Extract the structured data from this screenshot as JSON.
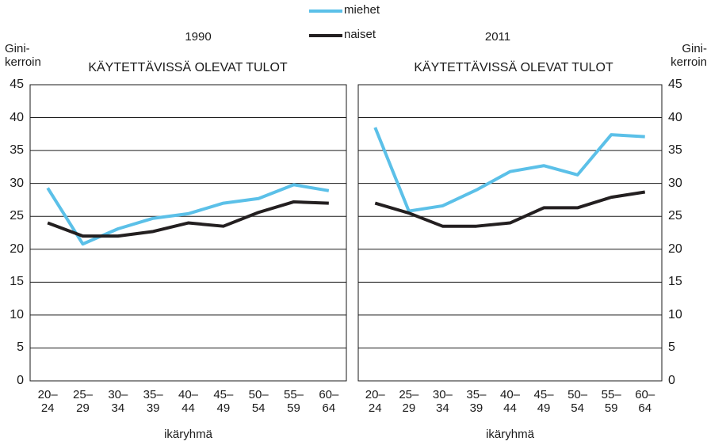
{
  "chart_data": [
    {
      "type": "line",
      "title": "1990",
      "subtitle": "KÄYTETTÄVISSÄ OLEVAT TULOT",
      "xlabel": "ikäryhmä",
      "ylabel": "Gini-kerroin",
      "categories": [
        "20–24",
        "25–29",
        "30–34",
        "35–39",
        "40–44",
        "45–49",
        "50–54",
        "55–59",
        "60–64"
      ],
      "series": [
        {
          "name": "miehet",
          "color": "#5bc0e8",
          "values": [
            29.3,
            20.8,
            23.1,
            24.7,
            25.4,
            27.0,
            27.7,
            29.8,
            28.9
          ]
        },
        {
          "name": "naiset",
          "color": "#231f20",
          "values": [
            24.0,
            22.0,
            22.0,
            22.7,
            24.0,
            23.5,
            25.6,
            27.2,
            27.0
          ]
        }
      ],
      "ylim": [
        0,
        45
      ],
      "yticks": [
        0,
        5,
        10,
        15,
        20,
        25,
        30,
        35,
        40,
        45
      ],
      "grid": true,
      "yaxis_side": "left"
    },
    {
      "type": "line",
      "title": "2011",
      "subtitle": "KÄYTETTÄVISSÄ OLEVAT TULOT",
      "xlabel": "ikäryhmä",
      "ylabel": "Gini-kerroin",
      "categories": [
        "20–24",
        "25–29",
        "30–34",
        "35–39",
        "40–44",
        "45–49",
        "50–54",
        "55–59",
        "60–64"
      ],
      "series": [
        {
          "color": "#5bc0e8",
          "values": [
            38.5,
            25.8,
            26.6,
            29.0,
            31.8,
            32.7,
            31.3,
            37.4,
            37.1
          ]
        },
        {
          "color": "#231f20",
          "values": [
            27.0,
            25.5,
            23.5,
            23.5,
            24.0,
            26.3,
            26.3,
            27.9,
            28.7
          ]
        }
      ],
      "ylim": [
        0,
        45
      ],
      "yticks": [
        0,
        5,
        10,
        15,
        20,
        25,
        30,
        35,
        40,
        45
      ],
      "grid": true,
      "yaxis_side": "right"
    }
  ]
}
